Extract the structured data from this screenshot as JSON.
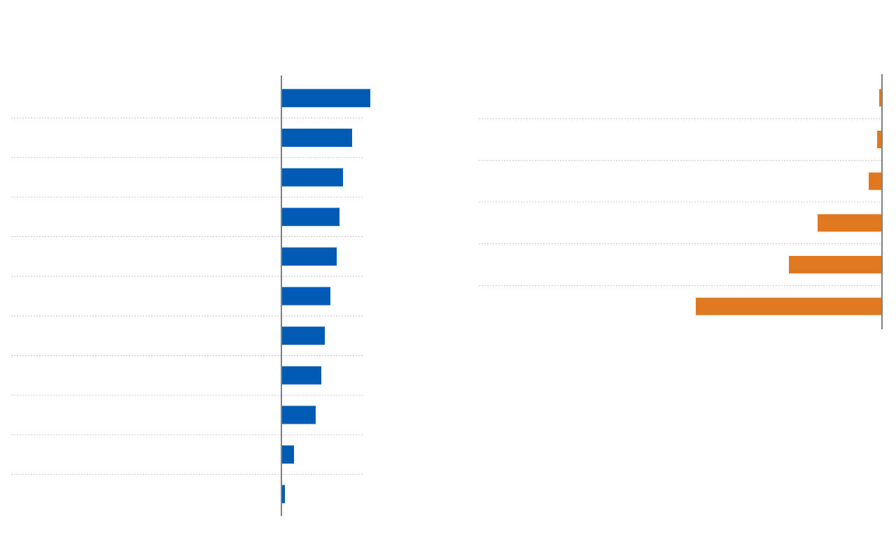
{
  "chart_data": [
    {
      "type": "bar",
      "orientation": "horizontal",
      "color": "#005bb5",
      "values": [
        127,
        101,
        88,
        83,
        79,
        70,
        62,
        57,
        49,
        18,
        5
      ],
      "xlim": [
        0,
        130
      ]
    },
    {
      "type": "bar",
      "orientation": "horizontal",
      "color": "#e07820",
      "values": [
        -4,
        -7,
        -19,
        -92,
        -133,
        -266
      ],
      "xlim": [
        -270,
        0
      ]
    }
  ]
}
